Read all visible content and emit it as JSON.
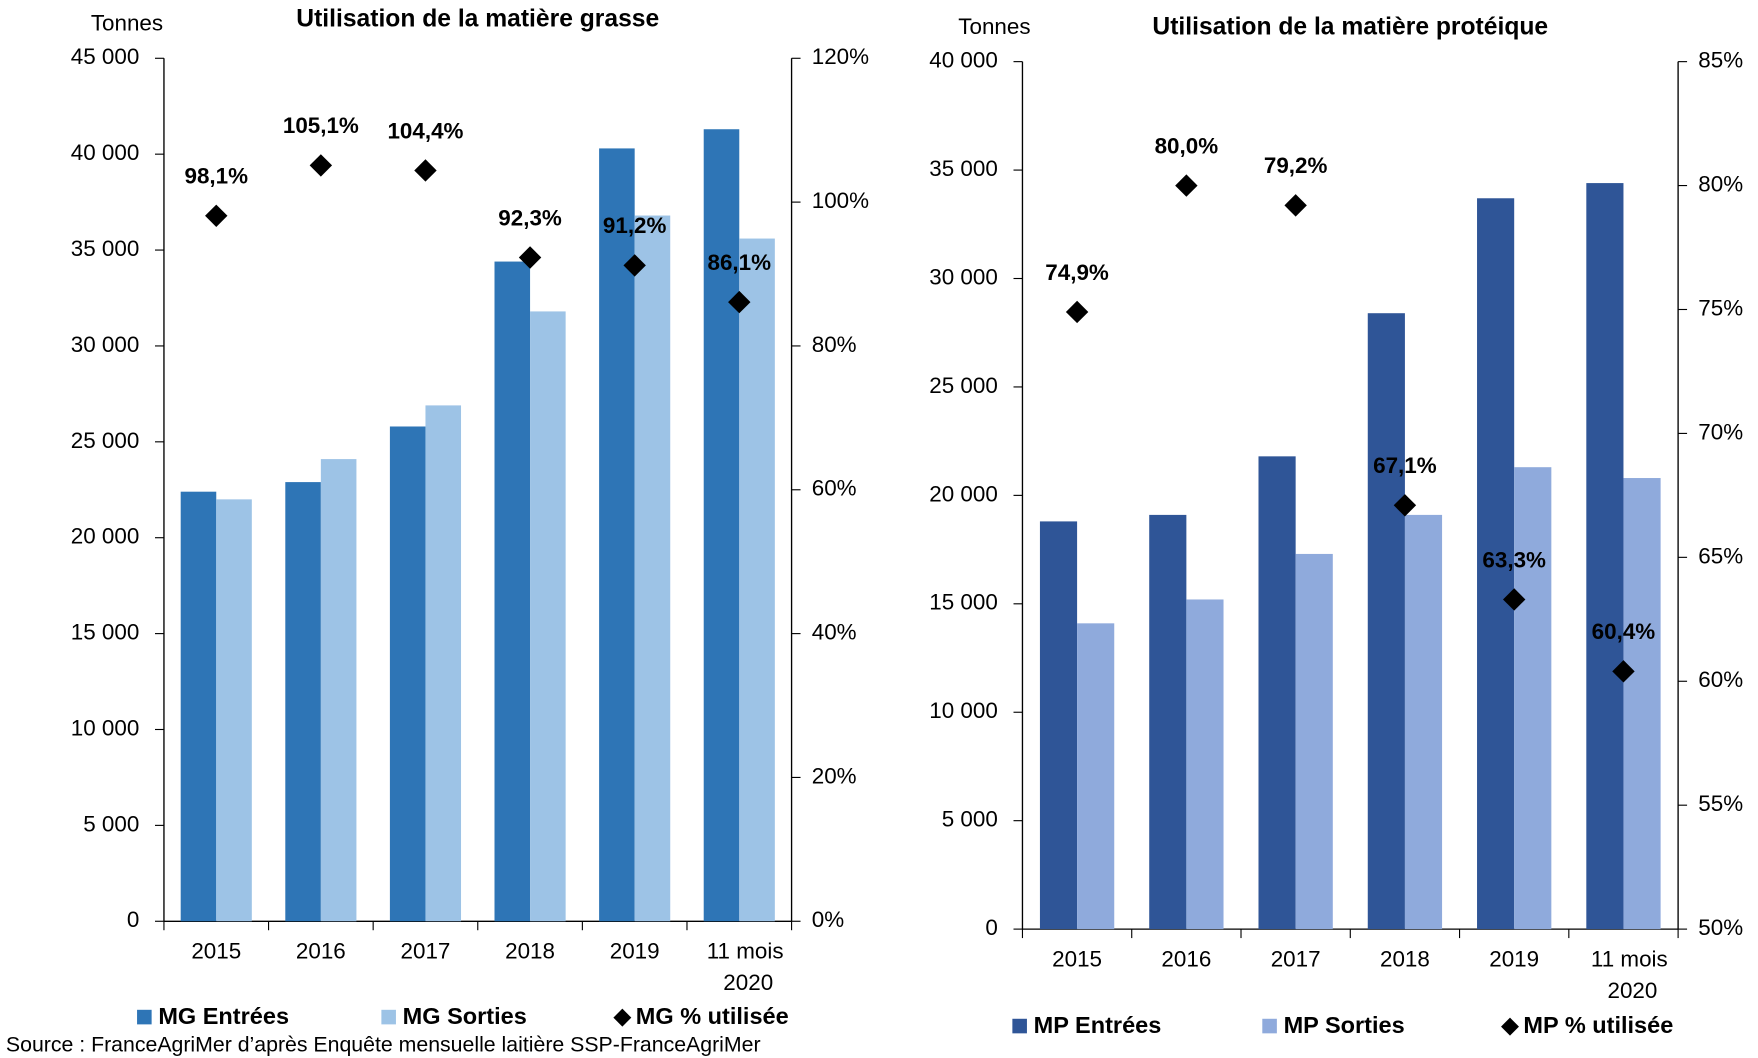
{
  "chart_data": [
    {
      "type": "bar",
      "title": "Utilisation de la matière grasse",
      "y_label": "Tonnes",
      "categories": [
        "2015",
        "2016",
        "2017",
        "2018",
        "2019",
        "11 mois 2020"
      ],
      "series": [
        {
          "name": "MG Entrées",
          "color": "#2e75b6",
          "values": [
            22400,
            22900,
            25800,
            34400,
            40300,
            41300
          ]
        },
        {
          "name": "MG Sorties",
          "color": "#9dc3e6",
          "values": [
            22000,
            24100,
            26900,
            31800,
            36800,
            35600
          ]
        },
        {
          "name": "MG % utilisée",
          "color": "#000000",
          "axis": "y2",
          "marker": "diamond",
          "values": [
            98.1,
            105.1,
            104.4,
            92.3,
            91.2,
            86.1
          ],
          "value_labels": [
            "98,1%",
            "105,1%",
            "104,4%",
            "92,3%",
            "91,2%",
            "86,1%"
          ]
        }
      ],
      "ylim": [
        0,
        45000
      ],
      "yticks": [
        0,
        {
          "value": 5000,
          "label": "5 000"
        },
        {
          "value": 10000,
          "label": "10 000"
        },
        {
          "value": 15000,
          "label": "15 000"
        },
        {
          "value": 20000,
          "label": "20 000"
        },
        {
          "value": 25000,
          "label": "25 000"
        },
        {
          "value": 30000,
          "label": "30 000"
        },
        {
          "value": 35000,
          "label": "35 000"
        },
        {
          "value": 40000,
          "label": "40 000"
        },
        {
          "value": 45000,
          "label": "45 000"
        }
      ],
      "y2lim": [
        0,
        120
      ],
      "y2ticks": [
        {
          "value": 0,
          "label": "0%"
        },
        {
          "value": 20,
          "label": "20%"
        },
        {
          "value": 40,
          "label": "40%"
        },
        {
          "value": 60,
          "label": "60%"
        },
        {
          "value": 80,
          "label": "80%"
        },
        {
          "value": 100,
          "label": "100%"
        },
        {
          "value": 120,
          "label": "120%"
        }
      ],
      "legend": "bottom"
    },
    {
      "type": "bar",
      "title": "Utilisation de la matière protéique",
      "y_label": "Tonnes",
      "categories": [
        "2015",
        "2016",
        "2017",
        "2018",
        "2019",
        "11 mois 2020"
      ],
      "series": [
        {
          "name": "MP Entrées",
          "color": "#2f5597",
          "values": [
            18800,
            19100,
            21800,
            28400,
            33700,
            34400
          ]
        },
        {
          "name": "MP Sorties",
          "color": "#8faadc",
          "values": [
            14100,
            15200,
            17300,
            19100,
            21300,
            20800
          ]
        },
        {
          "name": "MP % utilisée",
          "color": "#000000",
          "axis": "y2",
          "marker": "diamond",
          "values": [
            74.9,
            80.0,
            79.2,
            67.1,
            63.3,
            60.4
          ],
          "value_labels": [
            "74,9%",
            "80,0%",
            "79,2%",
            "67,1%",
            "63,3%",
            "60,4%"
          ]
        }
      ],
      "ylim": [
        0,
        40000
      ],
      "yticks": [
        0,
        {
          "value": 5000,
          "label": "5 000"
        },
        {
          "value": 10000,
          "label": "10 000"
        },
        {
          "value": 15000,
          "label": "15 000"
        },
        {
          "value": 20000,
          "label": "20 000"
        },
        {
          "value": 25000,
          "label": "25 000"
        },
        {
          "value": 30000,
          "label": "30 000"
        },
        {
          "value": 35000,
          "label": "35 000"
        },
        {
          "value": 40000,
          "label": "40 000"
        }
      ],
      "y2lim": [
        50,
        85
      ],
      "y2ticks": [
        {
          "value": 50,
          "label": "50%"
        },
        {
          "value": 55,
          "label": "55%"
        },
        {
          "value": 60,
          "label": "60%"
        },
        {
          "value": 65,
          "label": "65%"
        },
        {
          "value": 70,
          "label": "70%"
        },
        {
          "value": 75,
          "label": "75%"
        },
        {
          "value": 80,
          "label": "80%"
        },
        {
          "value": 85,
          "label": "85%"
        }
      ],
      "legend": "bottom"
    }
  ],
  "source": "Source : FranceAgriMer d’après Enquête mensuelle laitière SSP-FranceAgriMer"
}
